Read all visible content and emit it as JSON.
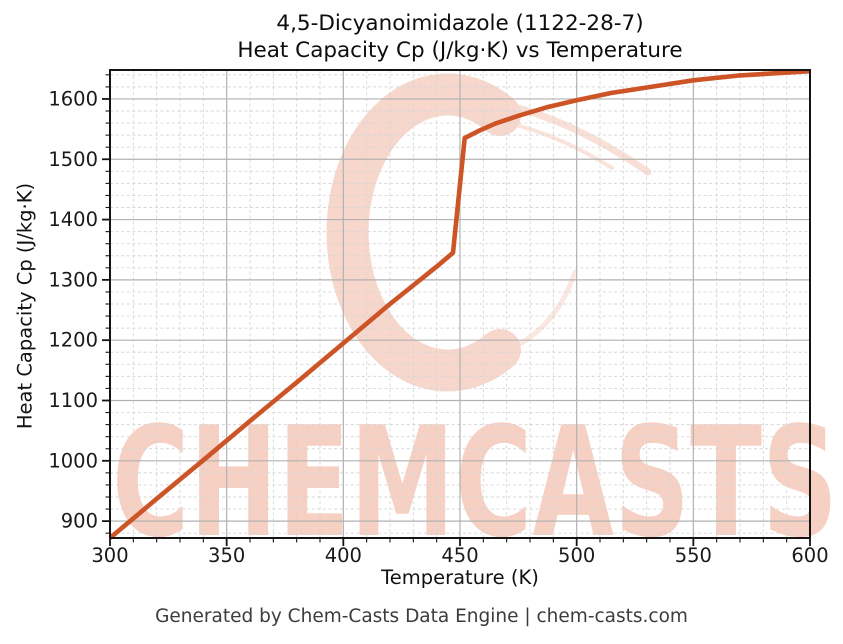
{
  "title": {
    "line1": "4,5-Dicyanoimidazole (1122-28-7)",
    "line2": "Heat Capacity Cp (J/kg·K) vs Temperature"
  },
  "axes": {
    "xlabel": "Temperature (K)",
    "ylabel": "Heat Capacity Cp (J/kg·K)"
  },
  "footer": {
    "text": "Generated by Chem-Casts Data Engine | chem-casts.com"
  },
  "watermark": {
    "text": "CHEMCASTS",
    "text_color": "#f6d0c2",
    "swoosh_color": "#f7d7cc"
  },
  "colors": {
    "line": "#cc5426",
    "grid_major": "#b2b2b2",
    "grid_minor": "#d6d6d6",
    "spine": "#141414",
    "tick_label": "#1a1a1a",
    "title_text": "#0d0d0d",
    "footer_text": "#3c3c3c",
    "background": "#ffffff"
  },
  "chart_data": {
    "type": "line",
    "title": "4,5-Dicyanoimidazole (1122-28-7) — Heat Capacity Cp (J/kg·K) vs Temperature",
    "xlabel": "Temperature (K)",
    "ylabel": "Heat Capacity Cp (J/kg·K)",
    "xlim": [
      300,
      600
    ],
    "ylim": [
      872,
      1648
    ],
    "x_major_ticks": [
      300,
      350,
      400,
      450,
      500,
      550,
      600
    ],
    "y_major_ticks": [
      900,
      1000,
      1100,
      1200,
      1300,
      1400,
      1500,
      1600
    ],
    "x_minor_step": 10,
    "y_minor_step": 20,
    "grid": {
      "major": "solid gray",
      "minor": "dashed light-gray"
    },
    "legend_position": "none",
    "series": [
      {
        "name": "Heat Capacity Cp",
        "color": "#cc5426",
        "x": [
          300,
          320,
          340,
          360,
          380,
          400,
          420,
          440,
          447,
          452,
          458,
          465,
          475,
          487,
          500,
          515,
          530,
          550,
          570,
          600
        ],
        "y": [
          872,
          937,
          1001,
          1066,
          1130,
          1195,
          1260,
          1322,
          1345,
          1535,
          1547,
          1559,
          1572,
          1586,
          1598,
          1610,
          1619,
          1631,
          1639,
          1646
        ]
      }
    ]
  }
}
